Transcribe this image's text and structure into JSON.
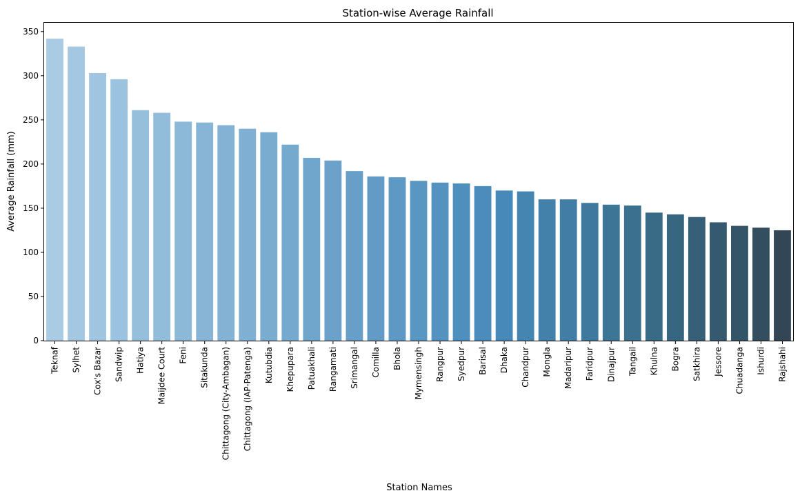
{
  "chart_data": {
    "type": "bar",
    "title": "Station-wise Average Rainfall",
    "xlabel": "Station Names",
    "ylabel": "Average Rainfall (mm)",
    "ylim": [
      0,
      360
    ],
    "yticks": [
      0,
      50,
      100,
      150,
      200,
      250,
      300,
      350
    ],
    "grid": false,
    "categories": [
      "Teknaf",
      "Sylhet",
      "Cox's Bazar",
      "Sandwip",
      "Hatiya",
      "Maijdee Court",
      "Feni",
      "Sitakunda",
      "Chittagong (City-Ambagan)",
      "Chittagong (IAP-Patenga)",
      "Kutubdia",
      "Khepupara",
      "Patuakhali",
      "Rangamati",
      "Srimangal",
      "Comilla",
      "Bhola",
      "Mymensingh",
      "Rangpur",
      "Syedpur",
      "Barisal",
      "Dhaka",
      "Chandpur",
      "Mongla",
      "Madaripur",
      "Faridpur",
      "Dinajpur",
      "Tangail",
      "Khulna",
      "Bogra",
      "Satkhira",
      "Jessore",
      "Chuadanga",
      "Ishurdi",
      "Rajshahi"
    ],
    "values": [
      342,
      333,
      303,
      296,
      261,
      258,
      248,
      247,
      244,
      240,
      236,
      222,
      207,
      204,
      192,
      186,
      185,
      181,
      179,
      178,
      175,
      170,
      169,
      160,
      160,
      156,
      154,
      153,
      145,
      143,
      140,
      134,
      130,
      128,
      125
    ],
    "colors": [
      "#a9cbe3",
      "#a4c8e1",
      "#a0c5e0",
      "#9bc2de",
      "#96bfdc",
      "#91bcda",
      "#8db9d8",
      "#88b5d6",
      "#83b2d4",
      "#7fafd2",
      "#7aacd0",
      "#75a9ce",
      "#70a6cc",
      "#6ca2ca",
      "#679fc8",
      "#629cc6",
      "#5d99c4",
      "#5996c2",
      "#5493c0",
      "#4f8fbe",
      "#4b8cbc",
      "#4789b9",
      "#4585b2",
      "#4381ab",
      "#417da4",
      "#3f799d",
      "#3d7596",
      "#3b708e",
      "#396b87",
      "#376680",
      "#356078",
      "#355a70",
      "#345468",
      "#334e5f",
      "#334655"
    ]
  }
}
